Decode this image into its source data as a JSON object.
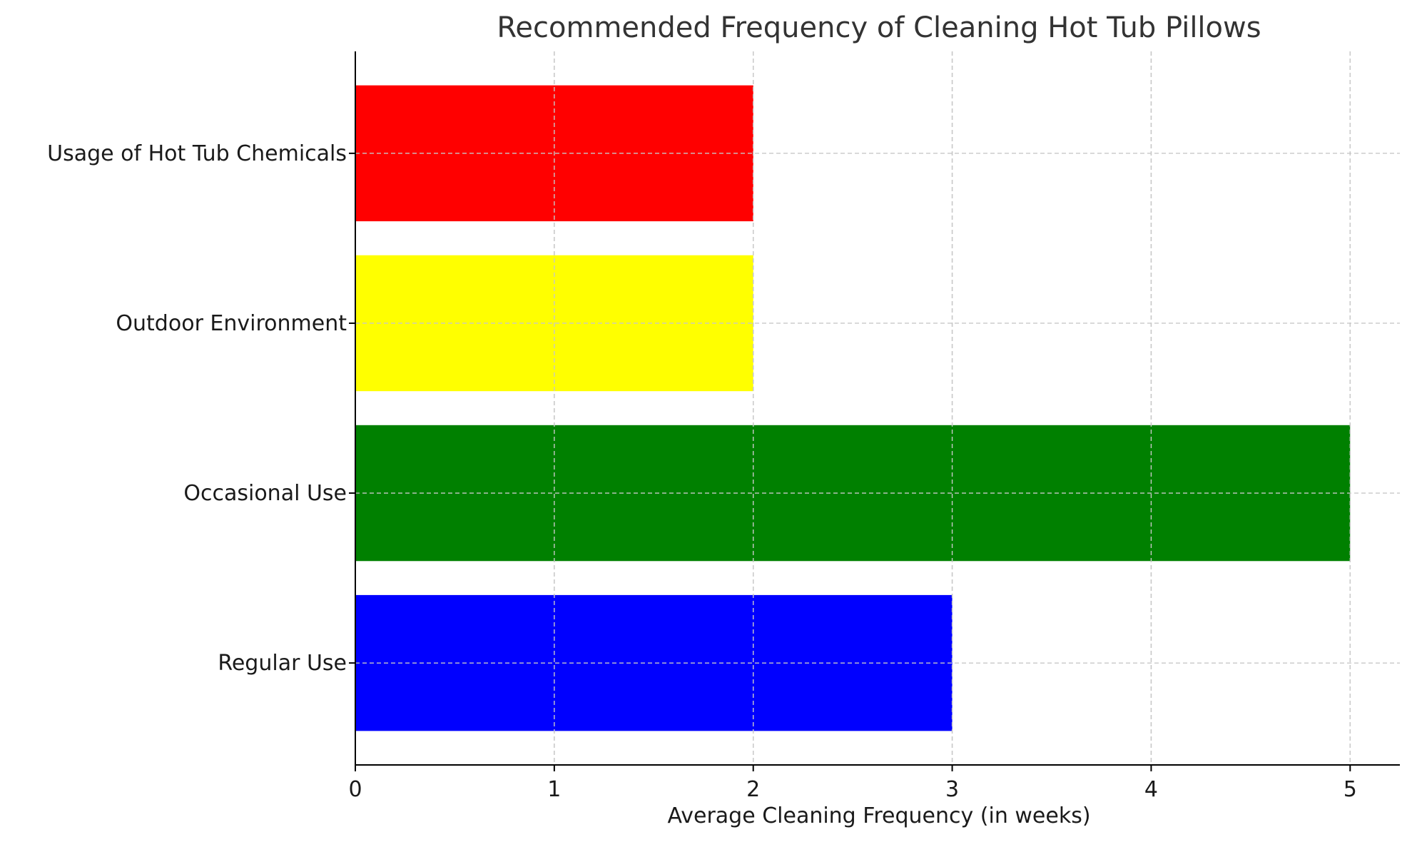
{
  "chart_data": {
    "type": "bar",
    "orientation": "horizontal",
    "title": "Recommended Frequency of Cleaning Hot Tub Pillows",
    "xlabel": "Average Cleaning Frequency (in weeks)",
    "ylabel": "",
    "categories": [
      "Regular Use",
      "Occasional Use",
      "Outdoor Environment",
      "Usage of Hot Tub Chemicals"
    ],
    "values": [
      3,
      5,
      2,
      2
    ],
    "colors": [
      "#0000ff",
      "#008000",
      "#ffff00",
      "#ff0000"
    ],
    "xlim": [
      0,
      5.25
    ],
    "xticks": [
      0,
      1,
      2,
      3,
      4,
      5
    ],
    "grid": true,
    "grid_style": "dashed",
    "legend": "none"
  }
}
